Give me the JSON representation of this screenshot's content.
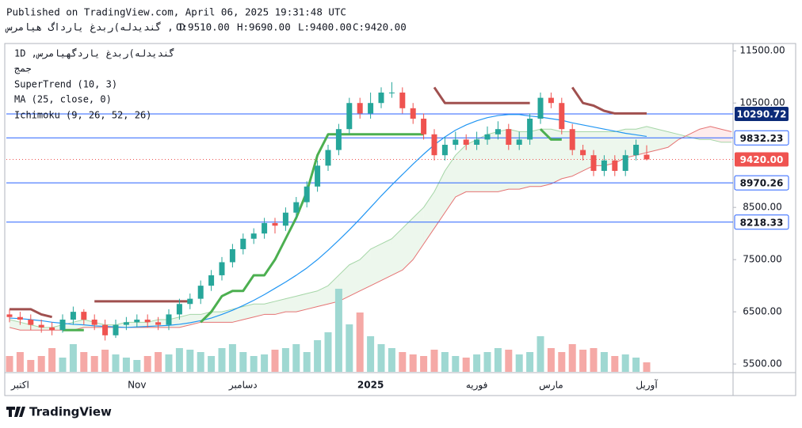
{
  "header": {
    "published": "Published on TradingView.com, April 06, 2025 19:31:48 UTC",
    "symbol": "گندیدله)ربدغ یارداگ هیامرس , D",
    "ohlc": [
      "O:9510.00",
      "H:9690.00",
      "L:9400.00",
      "C:9420.00"
    ]
  },
  "legend": {
    "symbol": "1D ,گندیدله)ربدغ یاردگهیامرس",
    "exchange": "جمج"
  },
  "footer": {
    "brand": "TradingView"
  },
  "chart_data": {
    "type": "candlestick",
    "categories": [
      null,
      "اکتبر",
      null,
      null,
      null,
      null,
      null,
      null,
      null,
      null,
      null,
      null,
      "Nov",
      null,
      null,
      null,
      null,
      null,
      null,
      null,
      null,
      null,
      "دسامبر",
      null,
      null,
      null,
      null,
      null,
      null,
      null,
      null,
      null,
      null,
      null,
      "2025",
      null,
      null,
      null,
      null,
      null,
      null,
      null,
      null,
      null,
      "فوریه",
      null,
      null,
      null,
      null,
      null,
      null,
      "مارس",
      null,
      null,
      null,
      null,
      null,
      null,
      null,
      null,
      "آوریل",
      null,
      null,
      null,
      null,
      null,
      null,
      null,
      null
    ],
    "open": [
      6450,
      6400,
      6350,
      6250,
      6200,
      6150,
      6350,
      6500,
      6350,
      6250,
      6050,
      6250,
      6300,
      6350,
      6300,
      6250,
      6450,
      6650,
      6750,
      7000,
      7200,
      7450,
      7700,
      7900,
      8000,
      8200,
      8150,
      8400,
      8600,
      8900,
      9300,
      9600,
      10000,
      10500,
      10300,
      10500,
      10700,
      10700,
      10400,
      10200,
      9900,
      9500,
      9700,
      9800,
      9700,
      9800,
      9900,
      10000,
      9700,
      9800,
      10200,
      10600,
      10500,
      10000,
      9600,
      9500,
      9200,
      9400,
      9200,
      9500,
      9510,
      null,
      null,
      null,
      null,
      null,
      null,
      null,
      null
    ],
    "high": [
      6550,
      6500,
      6450,
      6350,
      6300,
      6450,
      6600,
      6550,
      6450,
      6350,
      6350,
      6400,
      6450,
      6450,
      6400,
      6550,
      6750,
      6850,
      7100,
      7300,
      7550,
      7800,
      8000,
      8100,
      8300,
      8300,
      8500,
      8700,
      9000,
      9400,
      9700,
      10100,
      10600,
      10600,
      10700,
      10800,
      10900,
      10800,
      10500,
      10300,
      10000,
      9850,
      9950,
      9900,
      9950,
      10050,
      10150,
      10100,
      9950,
      10300,
      10700,
      10700,
      10600,
      10100,
      9700,
      9600,
      9500,
      9500,
      9600,
      9800,
      9690,
      null,
      null,
      null,
      null,
      null,
      null,
      null,
      null
    ],
    "low": [
      6300,
      6250,
      6150,
      6100,
      6050,
      6100,
      6250,
      6250,
      6150,
      5950,
      6000,
      6150,
      6200,
      6200,
      6150,
      6150,
      6350,
      6550,
      6650,
      6900,
      7100,
      7350,
      7600,
      7800,
      7900,
      8000,
      8050,
      8300,
      8500,
      8800,
      9200,
      9500,
      9900,
      10200,
      10200,
      10400,
      10600,
      10300,
      10100,
      9800,
      9400,
      9400,
      9600,
      9600,
      9600,
      9700,
      9800,
      9600,
      9600,
      9700,
      10100,
      10400,
      9900,
      9500,
      9400,
      9100,
      9100,
      9100,
      9100,
      9400,
      9400,
      null,
      null,
      null,
      null,
      null,
      null,
      null,
      null
    ],
    "close": [
      6400,
      6350,
      6250,
      6200,
      6150,
      6350,
      6500,
      6350,
      6250,
      6050,
      6250,
      6300,
      6350,
      6300,
      6250,
      6450,
      6650,
      6750,
      7000,
      7200,
      7450,
      7700,
      7900,
      8000,
      8200,
      8150,
      8400,
      8600,
      8900,
      9300,
      9600,
      10000,
      10500,
      10300,
      10500,
      10700,
      10700,
      10400,
      10200,
      9900,
      9500,
      9700,
      9800,
      9700,
      9800,
      9900,
      10000,
      9700,
      9800,
      10200,
      10600,
      10500,
      10000,
      9600,
      9500,
      9200,
      9400,
      9200,
      9500,
      9700,
      9420,
      null,
      null,
      null,
      null,
      null,
      null,
      null,
      null
    ],
    "volume": [
      20,
      25,
      15,
      20,
      30,
      18,
      35,
      25,
      20,
      28,
      22,
      18,
      15,
      20,
      25,
      22,
      30,
      28,
      25,
      20,
      30,
      35,
      25,
      20,
      22,
      28,
      30,
      35,
      25,
      40,
      50,
      105,
      60,
      75,
      45,
      35,
      30,
      25,
      22,
      20,
      28,
      25,
      20,
      18,
      22,
      25,
      30,
      28,
      22,
      25,
      45,
      30,
      25,
      35,
      28,
      30,
      25,
      20,
      22,
      18,
      12,
      null,
      null,
      null,
      null,
      null,
      null,
      null,
      null
    ],
    "up_color": "#26a69a",
    "down_color": "#ef5350",
    "up_volume_color": "#9fd8d2",
    "down_volume_color": "#f5a9a6",
    "supertrend": {
      "name": "SuperTrend (10, 3)",
      "up_color": "#4caf50",
      "down_color": "#a0504f",
      "up": [
        null,
        null,
        null,
        null,
        null,
        6150,
        6150,
        6150,
        null,
        null,
        null,
        null,
        null,
        null,
        null,
        null,
        null,
        null,
        6300,
        6500,
        6800,
        6900,
        6900,
        7200,
        7200,
        7500,
        7900,
        8300,
        8800,
        9500,
        9900,
        9900,
        9900,
        9900,
        9900,
        9900,
        9900,
        9900,
        9900,
        9900,
        null,
        null,
        null,
        null,
        null,
        null,
        null,
        null,
        null,
        null,
        10000,
        9800,
        9800,
        null,
        null,
        null,
        null,
        null,
        null,
        null,
        null,
        null,
        null,
        null,
        null,
        null,
        null,
        null,
        null
      ],
      "down": [
        6550,
        6550,
        6550,
        6450,
        6400,
        null,
        null,
        null,
        6700,
        6700,
        6700,
        6700,
        6700,
        6700,
        6700,
        6700,
        6700,
        6700,
        null,
        null,
        null,
        null,
        null,
        null,
        null,
        null,
        null,
        null,
        null,
        null,
        null,
        null,
        null,
        null,
        null,
        null,
        null,
        null,
        null,
        null,
        10800,
        10500,
        10500,
        10500,
        10500,
        10500,
        10500,
        10500,
        10500,
        10500,
        null,
        null,
        null,
        10800,
        10500,
        10450,
        10350,
        10300,
        10300,
        10300,
        10300,
        null,
        null,
        null,
        null,
        null,
        null,
        null,
        null
      ]
    },
    "ma": {
      "name": "MA (25, close, 0)",
      "color": "#2196f3",
      "values": [
        6380,
        6370,
        6350,
        6330,
        6300,
        6280,
        6260,
        6250,
        6230,
        6220,
        6210,
        6200,
        6210,
        6220,
        6230,
        6240,
        6260,
        6290,
        6330,
        6380,
        6450,
        6530,
        6620,
        6720,
        6830,
        6950,
        7070,
        7200,
        7340,
        7500,
        7680,
        7870,
        8070,
        8280,
        8500,
        8720,
        8930,
        9130,
        9330,
        9520,
        9700,
        9850,
        9980,
        10080,
        10160,
        10220,
        10260,
        10280,
        10280,
        10250,
        10230,
        10200,
        10170,
        10120,
        10080,
        10040,
        10000,
        9960,
        9920,
        9890,
        9860,
        null,
        null,
        null,
        null,
        null,
        null,
        null,
        null
      ]
    },
    "ichimoku": {
      "name": "Ichimoku (9, 26, 52, 26)",
      "color_a": "#a5d6a7",
      "color_b": "#e57373",
      "fill_a": "rgba(76,175,80,0.10)",
      "fill_b": "rgba(242,54,69,0.10)",
      "span_a": [
        6350,
        6300,
        6250,
        6200,
        6200,
        6250,
        6300,
        6350,
        6300,
        6250,
        6250,
        6300,
        6300,
        6300,
        6350,
        6350,
        6400,
        6450,
        6450,
        6500,
        6500,
        6550,
        6600,
        6650,
        6650,
        6700,
        6750,
        6800,
        6850,
        6900,
        7000,
        7200,
        7400,
        7500,
        7700,
        7800,
        7900,
        8100,
        8300,
        8500,
        8800,
        9200,
        9500,
        9700,
        9800,
        9900,
        9950,
        10000,
        9950,
        9950,
        10000,
        10000,
        9950,
        9950,
        9950,
        9950,
        9950,
        9950,
        10000,
        10000,
        10050,
        10000,
        9950,
        9900,
        9850,
        9800,
        9800,
        9750,
        9750
      ],
      "span_b": [
        6200,
        6150,
        6150,
        6150,
        6150,
        6150,
        6150,
        6200,
        6200,
        6200,
        6200,
        6200,
        6200,
        6200,
        6200,
        6200,
        6200,
        6250,
        6300,
        6300,
        6300,
        6300,
        6350,
        6400,
        6450,
        6450,
        6500,
        6500,
        6550,
        6600,
        6650,
        6700,
        6800,
        6900,
        7000,
        7100,
        7200,
        7300,
        7500,
        7800,
        8100,
        8400,
        8700,
        8800,
        8800,
        8800,
        8800,
        8850,
        8850,
        8900,
        8900,
        8950,
        9050,
        9100,
        9200,
        9300,
        9300,
        9350,
        9450,
        9500,
        9550,
        9600,
        9650,
        9800,
        9900,
        10000,
        10050,
        10000,
        9950
      ]
    },
    "levels": [
      {
        "price": 10290.72,
        "style": "dark",
        "color": "#2962ff"
      },
      {
        "price": 9832.23,
        "style": "light",
        "color": "#2962ff"
      },
      {
        "price": {
          "value": 9420,
          "label": "9420.00"
        },
        "style": "current",
        "color": "#ef5350"
      },
      {
        "price": 8970.26,
        "style": "light",
        "color": "#2962ff"
      },
      {
        "price": 8218.33,
        "style": "light",
        "color": "#2962ff"
      }
    ],
    "ylim": [
      5350,
      11640
    ],
    "yticks": [
      {
        "value": 11500,
        "label": "11500.00"
      },
      {
        "value": 10500,
        "label": "10500.00"
      },
      {
        "value": 8500,
        "label": "8500.00"
      },
      {
        "value": 7500,
        "label": "7500.00"
      },
      {
        "value": 6500,
        "label": "6500.00"
      },
      {
        "value": 5500,
        "label": "5500.00"
      }
    ]
  }
}
